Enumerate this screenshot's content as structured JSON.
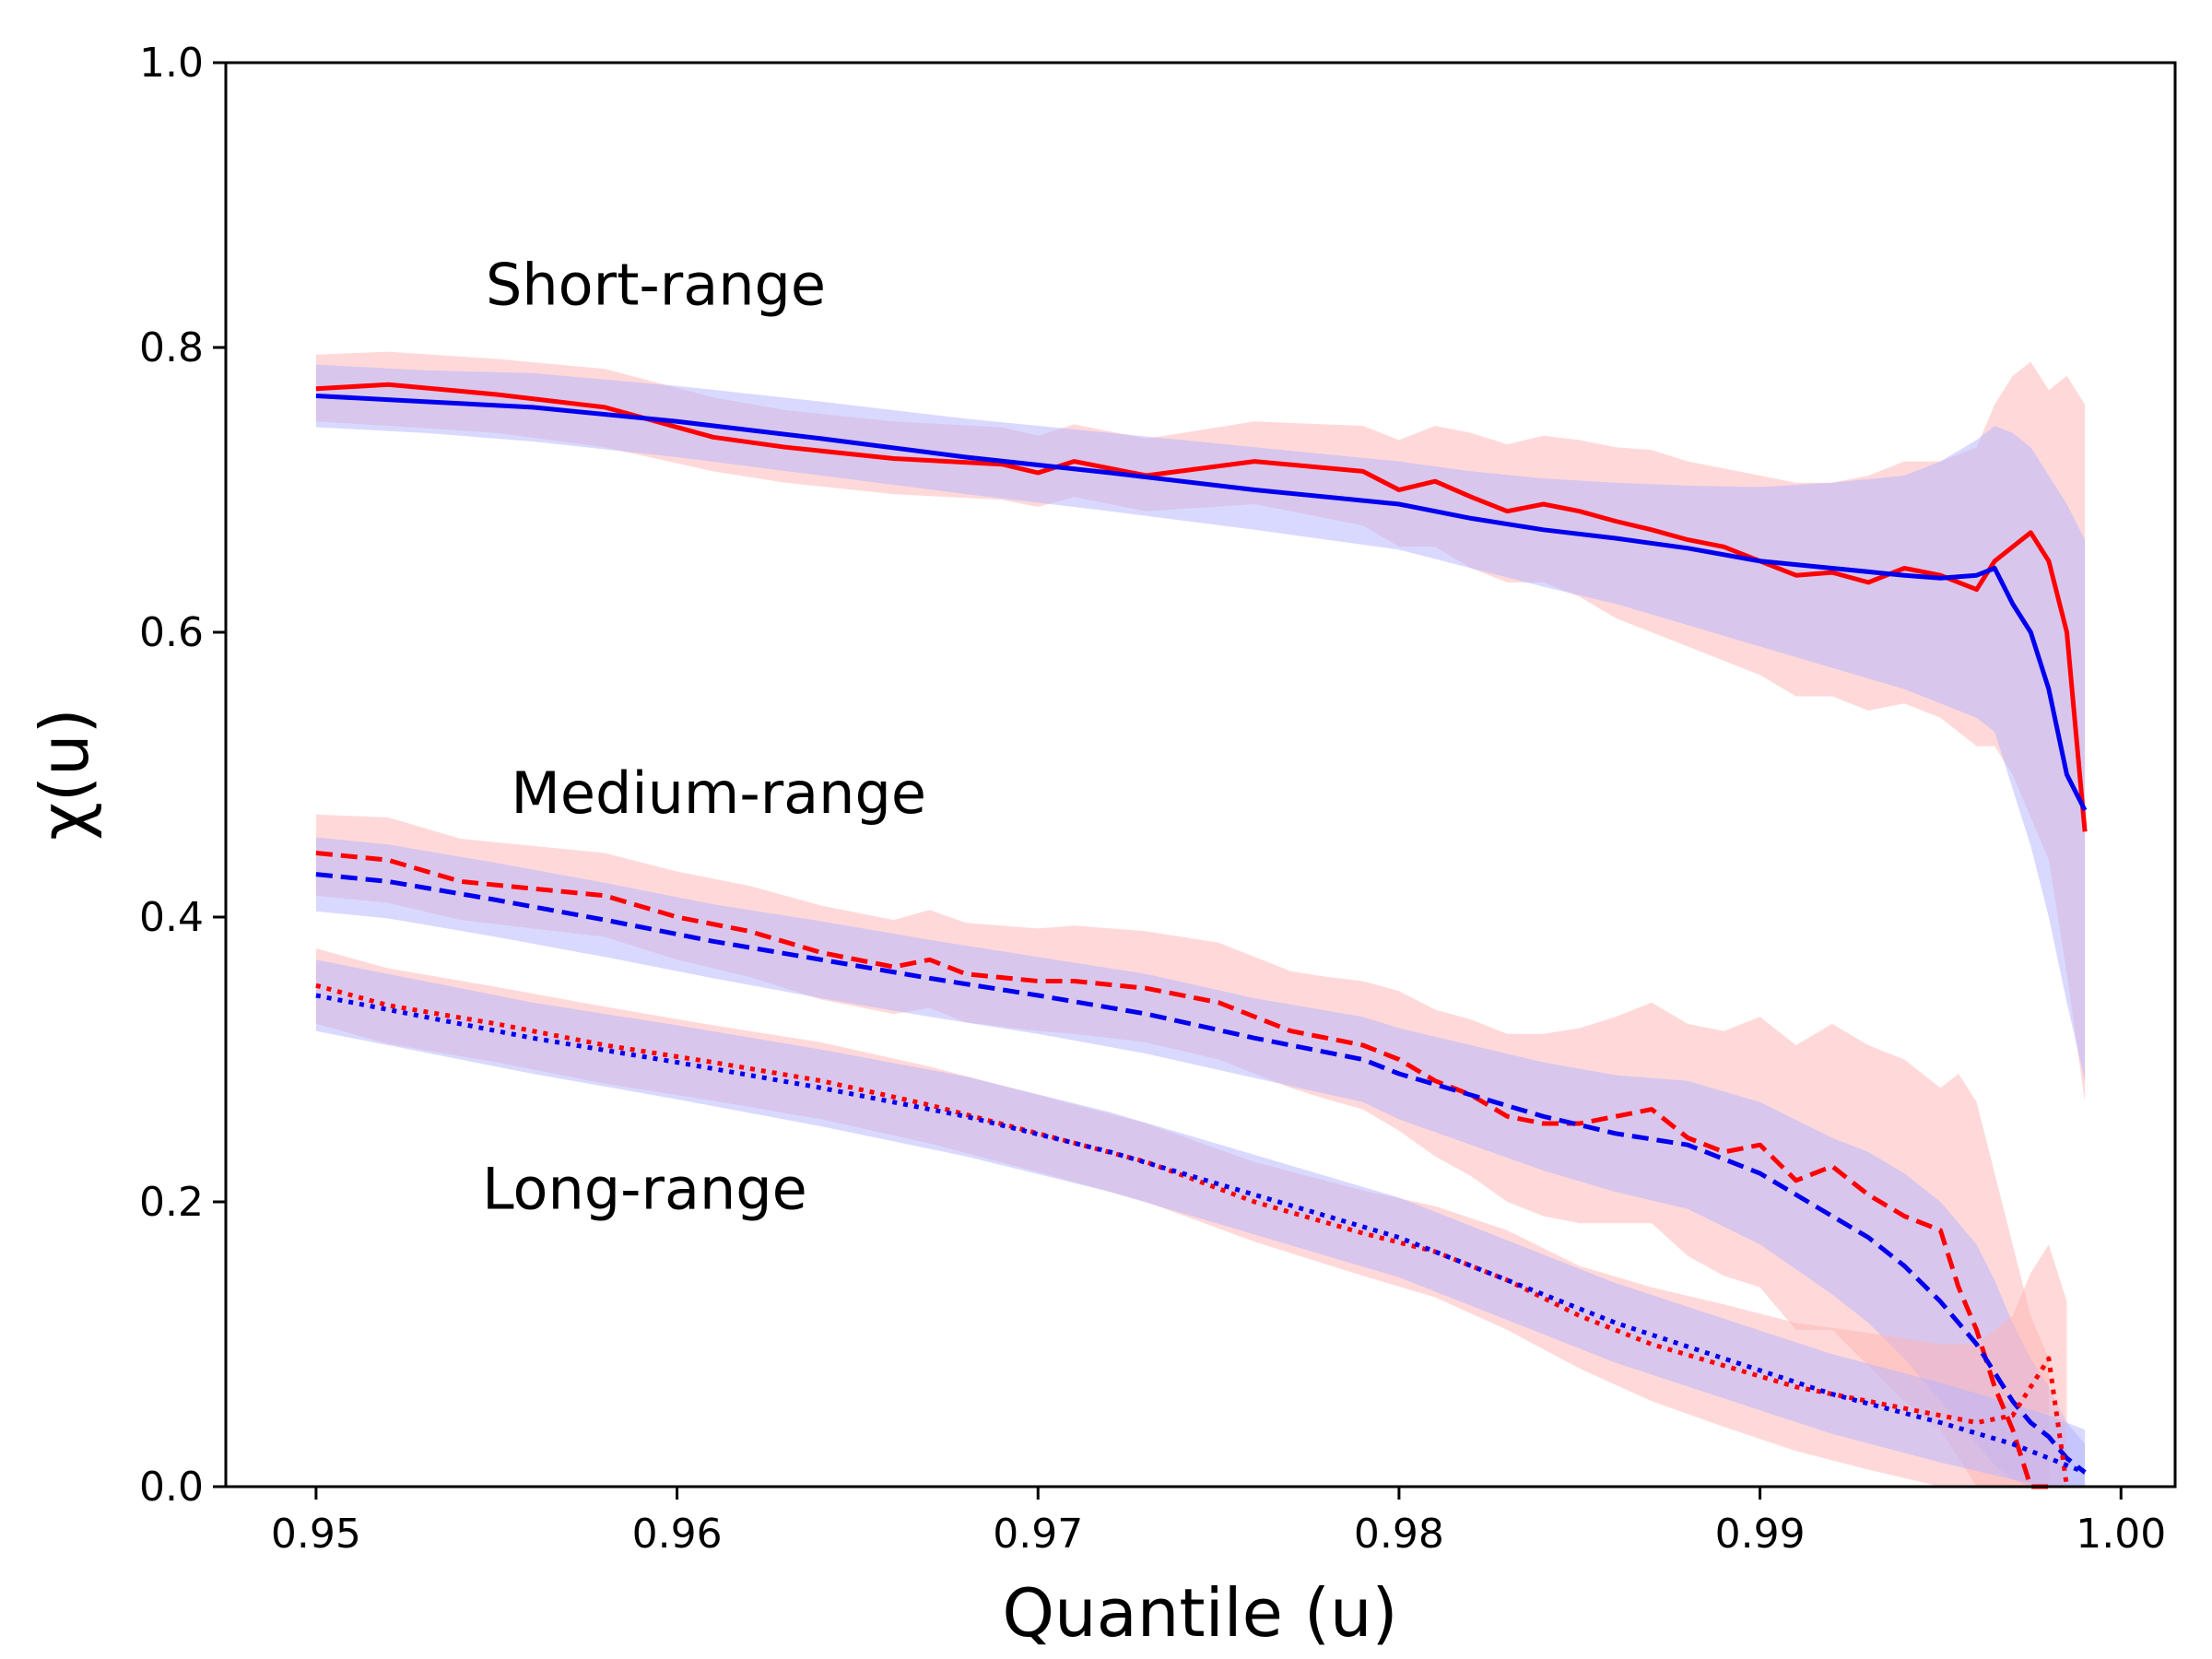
{
  "chart_data": {
    "type": "line",
    "xlabel": "Quantile (u)",
    "ylabel": "χ(u)",
    "xlim": [
      0.9475,
      1.0015
    ],
    "ylim": [
      0.0,
      1.0
    ],
    "xticks": [
      0.95,
      0.96,
      0.97,
      0.98,
      0.99,
      1.0
    ],
    "xtick_labels": [
      "0.95",
      "0.96",
      "0.97",
      "0.98",
      "0.99",
      "1.00"
    ],
    "yticks": [
      0.0,
      0.2,
      0.4,
      0.6,
      0.8,
      1.0
    ],
    "ytick_labels": [
      "0.0",
      "0.2",
      "0.4",
      "0.6",
      "0.8",
      "1.0"
    ],
    "grid": false,
    "annotations": [
      {
        "text": "Short-range",
        "x": 0.9547,
        "y": 0.83
      },
      {
        "text": "Medium-range",
        "x": 0.9554,
        "y": 0.473
      },
      {
        "text": "Long-range",
        "x": 0.9546,
        "y": 0.195
      }
    ],
    "colors": {
      "red": "#ff0000",
      "blue": "#0000ee",
      "red_band": "#ffb3b3",
      "blue_band": "#b3b3ff"
    },
    "series": [
      {
        "name": "short-range-red",
        "group": "Short-range",
        "color": "red",
        "style": "solid",
        "x": [
          0.95,
          0.952,
          0.955,
          0.958,
          0.961,
          0.963,
          0.966,
          0.969,
          0.97,
          0.971,
          0.973,
          0.976,
          0.979,
          0.98,
          0.981,
          0.982,
          0.983,
          0.984,
          0.985,
          0.986,
          0.987,
          0.988,
          0.989,
          0.99,
          0.991,
          0.992,
          0.993,
          0.994,
          0.995,
          0.996,
          0.9965,
          0.997,
          0.9975,
          0.998,
          0.9985,
          0.999
        ],
        "y": [
          0.771,
          0.774,
          0.767,
          0.758,
          0.737,
          0.73,
          0.722,
          0.718,
          0.712,
          0.72,
          0.71,
          0.72,
          0.713,
          0.7,
          0.706,
          0.695,
          0.685,
          0.69,
          0.685,
          0.678,
          0.672,
          0.665,
          0.66,
          0.65,
          0.64,
          0.642,
          0.635,
          0.645,
          0.64,
          0.63,
          0.65,
          0.66,
          0.67,
          0.65,
          0.6,
          0.46
        ],
        "band_low": [
          0.748,
          0.745,
          0.74,
          0.73,
          0.713,
          0.705,
          0.697,
          0.693,
          0.688,
          0.695,
          0.685,
          0.69,
          0.675,
          0.66,
          0.66,
          0.645,
          0.635,
          0.635,
          0.625,
          0.61,
          0.6,
          0.59,
          0.58,
          0.57,
          0.555,
          0.555,
          0.545,
          0.55,
          0.54,
          0.52,
          0.52,
          0.5,
          0.47,
          0.44,
          0.36,
          0.27
        ],
        "band_high": [
          0.795,
          0.797,
          0.792,
          0.785,
          0.765,
          0.756,
          0.748,
          0.744,
          0.738,
          0.746,
          0.736,
          0.748,
          0.745,
          0.735,
          0.745,
          0.74,
          0.732,
          0.738,
          0.735,
          0.73,
          0.728,
          0.72,
          0.715,
          0.71,
          0.705,
          0.705,
          0.71,
          0.72,
          0.72,
          0.73,
          0.76,
          0.78,
          0.79,
          0.77,
          0.78,
          0.76
        ]
      },
      {
        "name": "short-range-blue",
        "group": "Short-range",
        "color": "blue",
        "style": "solid",
        "x": [
          0.95,
          0.953,
          0.956,
          0.96,
          0.964,
          0.968,
          0.972,
          0.976,
          0.98,
          0.982,
          0.984,
          0.986,
          0.988,
          0.99,
          0.992,
          0.994,
          0.995,
          0.996,
          0.9965,
          0.997,
          0.9975,
          0.998,
          0.9985,
          0.999
        ],
        "y": [
          0.766,
          0.762,
          0.758,
          0.748,
          0.736,
          0.723,
          0.712,
          0.7,
          0.69,
          0.68,
          0.672,
          0.666,
          0.659,
          0.65,
          0.645,
          0.64,
          0.638,
          0.64,
          0.645,
          0.62,
          0.6,
          0.56,
          0.5,
          0.475
        ],
        "band_low": [
          0.744,
          0.74,
          0.734,
          0.723,
          0.71,
          0.697,
          0.685,
          0.672,
          0.658,
          0.645,
          0.632,
          0.62,
          0.605,
          0.59,
          0.575,
          0.56,
          0.55,
          0.54,
          0.53,
          0.49,
          0.45,
          0.4,
          0.34,
          0.285
        ],
        "band_high": [
          0.788,
          0.784,
          0.782,
          0.773,
          0.762,
          0.75,
          0.74,
          0.73,
          0.72,
          0.713,
          0.708,
          0.705,
          0.703,
          0.702,
          0.705,
          0.71,
          0.72,
          0.735,
          0.745,
          0.74,
          0.73,
          0.71,
          0.69,
          0.665
        ]
      },
      {
        "name": "medium-range-red",
        "group": "Medium-range",
        "color": "red",
        "style": "dashed",
        "x": [
          0.95,
          0.952,
          0.954,
          0.958,
          0.96,
          0.962,
          0.964,
          0.966,
          0.967,
          0.968,
          0.97,
          0.971,
          0.973,
          0.975,
          0.977,
          0.978,
          0.979,
          0.98,
          0.981,
          0.982,
          0.983,
          0.984,
          0.985,
          0.986,
          0.987,
          0.988,
          0.989,
          0.99,
          0.991,
          0.992,
          0.993,
          0.994,
          0.995,
          0.9955,
          0.996,
          0.9965,
          0.997,
          0.9975,
          0.998
        ],
        "y": [
          0.445,
          0.44,
          0.425,
          0.415,
          0.4,
          0.39,
          0.375,
          0.365,
          0.37,
          0.36,
          0.355,
          0.355,
          0.35,
          0.34,
          0.32,
          0.315,
          0.31,
          0.3,
          0.285,
          0.275,
          0.26,
          0.255,
          0.255,
          0.26,
          0.265,
          0.245,
          0.235,
          0.24,
          0.215,
          0.225,
          0.205,
          0.19,
          0.18,
          0.14,
          0.11,
          0.07,
          0.04,
          0.0,
          0.0
        ],
        "band_low": [
          0.415,
          0.41,
          0.398,
          0.386,
          0.37,
          0.358,
          0.342,
          0.332,
          0.336,
          0.326,
          0.32,
          0.318,
          0.312,
          0.3,
          0.28,
          0.272,
          0.265,
          0.25,
          0.232,
          0.218,
          0.2,
          0.19,
          0.185,
          0.185,
          0.185,
          0.162,
          0.148,
          0.14,
          0.11,
          0.11,
          0.085,
          0.06,
          0.04,
          0.02,
          0.0,
          0.0,
          0.0,
          0.0,
          0.0
        ],
        "band_high": [
          0.472,
          0.47,
          0.455,
          0.445,
          0.432,
          0.422,
          0.408,
          0.398,
          0.405,
          0.396,
          0.392,
          0.394,
          0.39,
          0.382,
          0.362,
          0.358,
          0.355,
          0.348,
          0.335,
          0.328,
          0.318,
          0.318,
          0.322,
          0.33,
          0.34,
          0.325,
          0.32,
          0.33,
          0.31,
          0.325,
          0.31,
          0.3,
          0.28,
          0.29,
          0.27,
          0.22,
          0.17,
          0.12,
          0.09
        ]
      },
      {
        "name": "medium-range-blue",
        "group": "Medium-range",
        "color": "blue",
        "style": "dashed",
        "x": [
          0.95,
          0.952,
          0.955,
          0.958,
          0.961,
          0.964,
          0.967,
          0.97,
          0.973,
          0.976,
          0.979,
          0.98,
          0.982,
          0.984,
          0.986,
          0.988,
          0.99,
          0.992,
          0.993,
          0.994,
          0.995,
          0.996,
          0.9965,
          0.997,
          0.9975,
          0.998,
          0.9985,
          0.999
        ],
        "y": [
          0.43,
          0.425,
          0.412,
          0.398,
          0.383,
          0.37,
          0.357,
          0.345,
          0.332,
          0.315,
          0.3,
          0.29,
          0.275,
          0.26,
          0.248,
          0.24,
          0.22,
          0.19,
          0.175,
          0.155,
          0.13,
          0.1,
          0.08,
          0.06,
          0.045,
          0.035,
          0.02,
          0.01
        ],
        "band_low": [
          0.404,
          0.399,
          0.386,
          0.372,
          0.357,
          0.343,
          0.33,
          0.318,
          0.304,
          0.287,
          0.27,
          0.258,
          0.24,
          0.222,
          0.207,
          0.195,
          0.17,
          0.135,
          0.115,
          0.09,
          0.06,
          0.03,
          0.015,
          0.005,
          0.0,
          0.0,
          0.0,
          0.0
        ],
        "band_high": [
          0.456,
          0.451,
          0.438,
          0.424,
          0.409,
          0.397,
          0.384,
          0.372,
          0.36,
          0.343,
          0.33,
          0.322,
          0.31,
          0.298,
          0.289,
          0.285,
          0.27,
          0.245,
          0.235,
          0.22,
          0.2,
          0.17,
          0.145,
          0.115,
          0.09,
          0.07,
          0.045,
          0.03
        ]
      },
      {
        "name": "long-range-red",
        "group": "Long-range",
        "color": "red",
        "style": "dotted",
        "x": [
          0.95,
          0.952,
          0.955,
          0.958,
          0.961,
          0.964,
          0.967,
          0.97,
          0.973,
          0.976,
          0.979,
          0.981,
          0.983,
          0.985,
          0.987,
          0.989,
          0.991,
          0.993,
          0.995,
          0.996,
          0.997,
          0.9975,
          0.998,
          0.9985
        ],
        "y": [
          0.352,
          0.338,
          0.325,
          0.31,
          0.298,
          0.285,
          0.268,
          0.248,
          0.228,
          0.2,
          0.178,
          0.165,
          0.145,
          0.12,
          0.1,
          0.085,
          0.07,
          0.06,
          0.05,
          0.045,
          0.05,
          0.07,
          0.09,
          0.0
        ],
        "band_low": [
          0.325,
          0.311,
          0.298,
          0.283,
          0.271,
          0.258,
          0.241,
          0.221,
          0.2,
          0.172,
          0.148,
          0.133,
          0.11,
          0.083,
          0.06,
          0.042,
          0.025,
          0.012,
          0.0,
          0.0,
          0.0,
          0.0,
          0.0,
          0.0
        ],
        "band_high": [
          0.378,
          0.364,
          0.351,
          0.337,
          0.324,
          0.312,
          0.295,
          0.275,
          0.255,
          0.228,
          0.208,
          0.197,
          0.18,
          0.155,
          0.14,
          0.128,
          0.115,
          0.108,
          0.1,
          0.1,
          0.12,
          0.15,
          0.17,
          0.13
        ]
      },
      {
        "name": "long-range-blue",
        "group": "Long-range",
        "color": "blue",
        "style": "dotted",
        "x": [
          0.95,
          0.953,
          0.956,
          0.96,
          0.964,
          0.968,
          0.972,
          0.976,
          0.98,
          0.983,
          0.986,
          0.989,
          0.992,
          0.995,
          0.997,
          0.998,
          0.9985,
          0.999
        ],
        "y": [
          0.345,
          0.33,
          0.315,
          0.298,
          0.28,
          0.26,
          0.235,
          0.205,
          0.175,
          0.145,
          0.115,
          0.09,
          0.065,
          0.045,
          0.03,
          0.02,
          0.015,
          0.01
        ],
        "band_low": [
          0.32,
          0.305,
          0.29,
          0.272,
          0.253,
          0.232,
          0.207,
          0.177,
          0.147,
          0.117,
          0.087,
          0.062,
          0.037,
          0.017,
          0.005,
          0.0,
          0.0,
          0.0
        ],
        "band_high": [
          0.37,
          0.355,
          0.34,
          0.324,
          0.307,
          0.288,
          0.263,
          0.233,
          0.203,
          0.173,
          0.143,
          0.118,
          0.093,
          0.073,
          0.058,
          0.05,
          0.045,
          0.04
        ]
      }
    ]
  }
}
